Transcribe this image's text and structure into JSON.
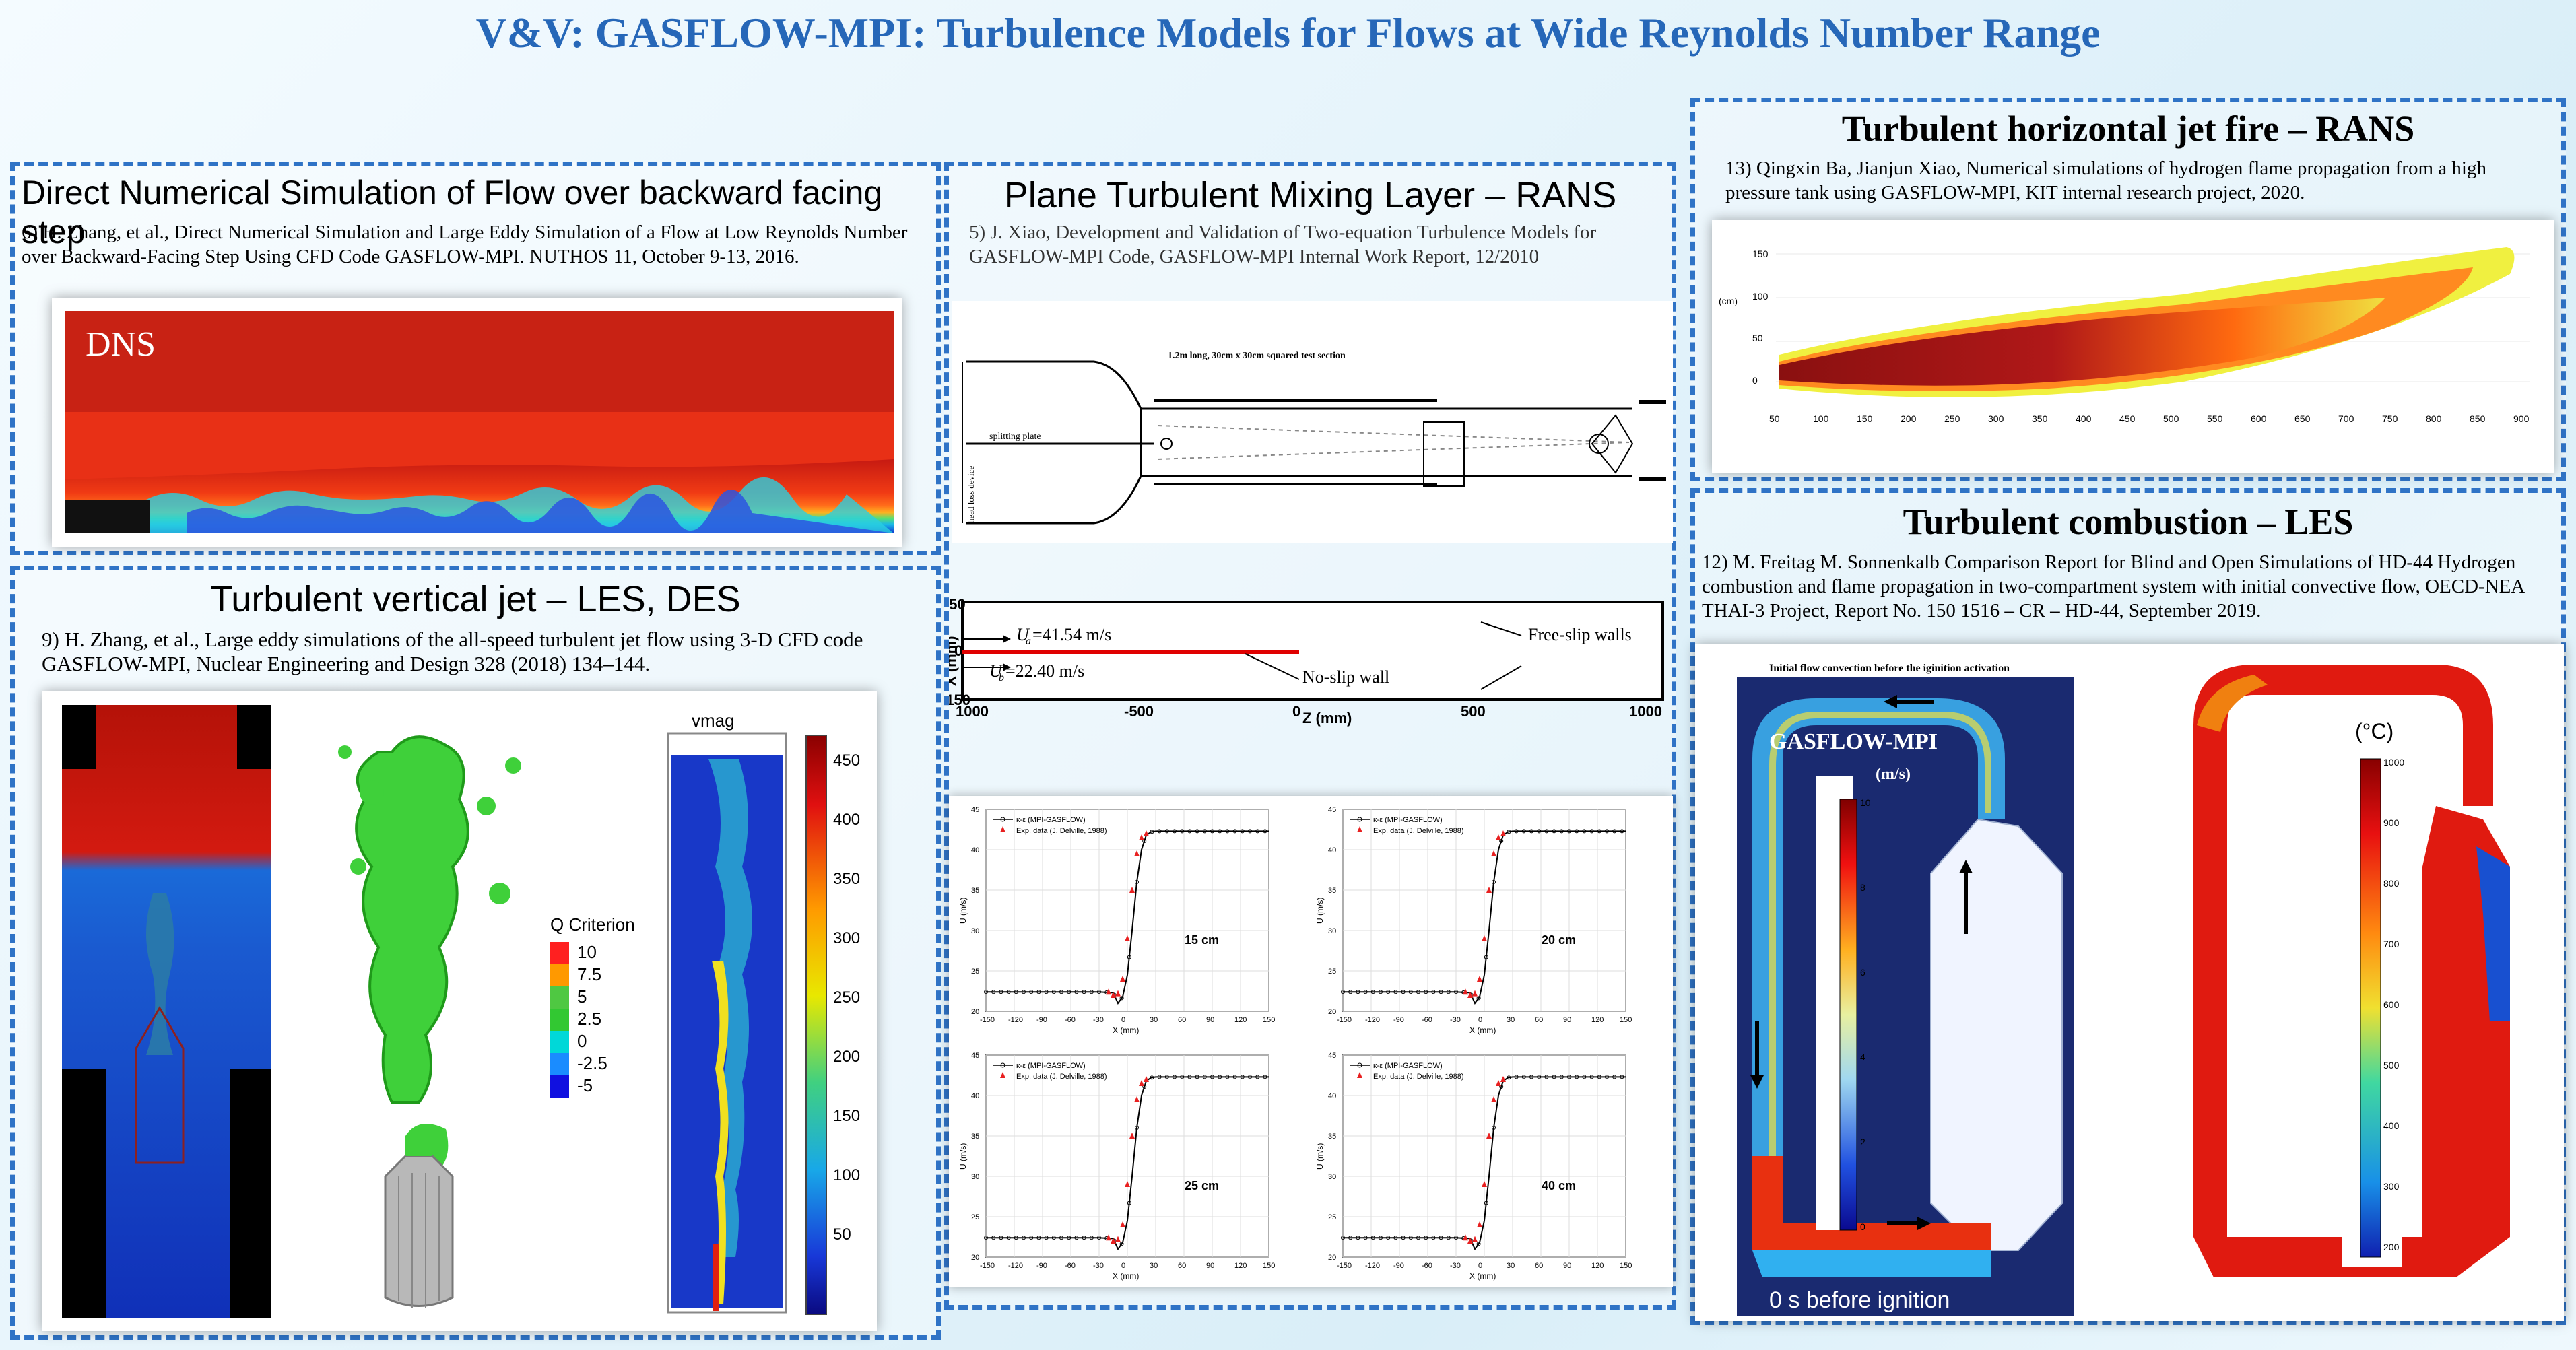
{
  "title": "V&V: GASFLOW-MPI: Turbulence Models for Flows at Wide Reynolds Number Range",
  "dns_panel": {
    "heading": "Direct Numerical Simulation of Flow over backward facing step",
    "ref": "6) H. Zhang, et al., Direct Numerical Simulation and Large Eddy Simulation of a Flow at Low Reynolds Number over Backward-Facing Step Using CFD Code GASFLOW-MPI. NUTHOS 11, October 9-13, 2016.",
    "figure_label": "DNS"
  },
  "jet_panel": {
    "heading": "Turbulent vertical jet – LES, DES",
    "ref": "9) H. Zhang, et al., Large eddy simulations of the all-speed turbulent jet flow using 3-D CFD code GASFLOW-MPI, Nuclear Engineering and Design 328 (2018) 134–144.",
    "q_title": "Q Criterion",
    "q_levels": [
      "10",
      "7.5",
      "5",
      "2.5",
      "0",
      "-2.5",
      "-5"
    ],
    "q_colors": [
      "#ff2020",
      "#ff9900",
      "#4fc842",
      "#32c832",
      "#00d8d8",
      "#1a8cff",
      "#1010e0"
    ],
    "vmag_title": "vmag",
    "vmag_ticks": [
      "450",
      "400",
      "350",
      "300",
      "250",
      "200",
      "150",
      "100",
      "50"
    ]
  },
  "mixing_panel": {
    "heading": "Plane Turbulent Mixing Layer – RANS",
    "ref": "5) J. Xiao, Development and Validation of Two-equation Turbulence Models for GASFLOW-MPI Code, GASFLOW-MPI Internal Work Report, 12/2010",
    "schematic": {
      "section": "1.2m long, 30cm x 30cm squared test section",
      "splitting": "splitting plate",
      "headloss": "head loss device"
    },
    "domain": {
      "ylabel": "X (mm)",
      "ua": "=41.54 m/s",
      "ub": "=22.40 m/s",
      "freeslip": "Free-slip walls",
      "noslip": "No-slip wall",
      "y_top": "150",
      "y_mid": "0",
      "y_bot": "-150",
      "x_ticks": [
        "1000",
        "-500",
        "0",
        "500",
        "1000"
      ],
      "xlabel": "Z (mm)"
    },
    "legend_model": "κ-ε (MPI-GASFLOW)",
    "legend_exp": "Exp. data (J. Delville, 1988)",
    "xlabel": "X (mm)",
    "ylabel": "U (m/s)"
  },
  "chart_data": [
    {
      "type": "line",
      "title": "15 cm",
      "xlim": [
        -150,
        150
      ],
      "ylim": [
        20,
        45
      ],
      "x_ticks": [
        "-150",
        "-120",
        "-90",
        "-60",
        "-30",
        "0",
        "30",
        "60",
        "90",
        "120",
        "150"
      ],
      "y_ticks": [
        "20",
        "25",
        "30",
        "35",
        "40",
        "45"
      ],
      "series": [
        {
          "name": "κ-ε (MPI-GASFLOW)",
          "x": [
            -150,
            -30,
            -15,
            -10,
            -5,
            0,
            5,
            10,
            15,
            20,
            25,
            30,
            150
          ],
          "y": [
            22.4,
            22.4,
            22.3,
            21.0,
            21.8,
            24.5,
            30.0,
            36.0,
            40.0,
            41.8,
            42.2,
            42.3,
            42.3
          ]
        },
        {
          "name": "Exp. data (J. Delville, 1988)",
          "x": [
            -20,
            -15,
            -10,
            -5,
            0,
            5,
            10,
            15,
            20
          ],
          "y": [
            22.4,
            22.0,
            22.2,
            24.0,
            29.0,
            35.0,
            39.5,
            41.5,
            42.0
          ]
        }
      ]
    },
    {
      "type": "line",
      "title": "20 cm",
      "xlim": [
        -150,
        150
      ],
      "ylim": [
        20,
        45
      ],
      "x_ticks": [
        "-150",
        "-120",
        "-90",
        "-60",
        "-30",
        "0",
        "30",
        "60",
        "90",
        "120",
        "150"
      ],
      "y_ticks": [
        "20",
        "25",
        "30",
        "35",
        "40",
        "45"
      ],
      "series": [
        {
          "name": "κ-ε (MPI-GASFLOW)",
          "x": [
            -150,
            -30,
            -15,
            -10,
            -5,
            0,
            5,
            10,
            15,
            20,
            25,
            30,
            150
          ],
          "y": [
            22.4,
            22.4,
            22.3,
            21.0,
            21.8,
            24.5,
            30.0,
            36.0,
            40.0,
            41.8,
            42.2,
            42.3,
            42.3
          ]
        },
        {
          "name": "Exp. data (J. Delville, 1988)",
          "x": [
            -20,
            -15,
            -10,
            -5,
            0,
            5,
            10,
            15,
            20
          ],
          "y": [
            22.4,
            22.0,
            22.2,
            24.0,
            29.0,
            35.0,
            39.5,
            41.5,
            42.0
          ]
        }
      ]
    },
    {
      "type": "line",
      "title": "25 cm",
      "xlim": [
        -150,
        150
      ],
      "ylim": [
        20,
        45
      ],
      "x_ticks": [
        "-150",
        "-120",
        "-90",
        "-60",
        "-30",
        "0",
        "30",
        "60",
        "90",
        "120",
        "150"
      ],
      "y_ticks": [
        "20",
        "25",
        "30",
        "35",
        "40",
        "45"
      ],
      "series": [
        {
          "name": "κ-ε (MPI-GASFLOW)",
          "x": [
            -150,
            -30,
            -15,
            -10,
            -5,
            0,
            5,
            10,
            15,
            20,
            25,
            30,
            150
          ],
          "y": [
            22.4,
            22.4,
            22.3,
            21.0,
            21.8,
            24.5,
            30.0,
            36.0,
            40.0,
            41.8,
            42.2,
            42.3,
            42.3
          ]
        },
        {
          "name": "Exp. data (J. Delville, 1988)",
          "x": [
            -20,
            -15,
            -10,
            -5,
            0,
            5,
            10,
            15,
            20
          ],
          "y": [
            22.4,
            22.0,
            22.2,
            24.0,
            29.0,
            35.0,
            39.5,
            41.5,
            42.0
          ]
        }
      ]
    },
    {
      "type": "line",
      "title": "40 cm",
      "xlim": [
        -150,
        150
      ],
      "ylim": [
        20,
        45
      ],
      "x_ticks": [
        "-150",
        "-120",
        "-90",
        "-60",
        "-30",
        "0",
        "30",
        "60",
        "90",
        "120",
        "150"
      ],
      "y_ticks": [
        "20",
        "25",
        "30",
        "35",
        "40",
        "45"
      ],
      "series": [
        {
          "name": "κ-ε (MPI-GASFLOW)",
          "x": [
            -150,
            -30,
            -15,
            -10,
            -5,
            0,
            5,
            10,
            15,
            20,
            25,
            30,
            150
          ],
          "y": [
            22.4,
            22.4,
            22.3,
            21.0,
            21.8,
            24.5,
            30.0,
            36.0,
            40.0,
            41.8,
            42.2,
            42.3,
            42.3
          ]
        },
        {
          "name": "Exp. data (J. Delville, 1988)",
          "x": [
            -20,
            -15,
            -10,
            -5,
            0,
            5,
            10,
            15,
            20
          ],
          "y": [
            22.4,
            22.0,
            22.2,
            24.0,
            29.0,
            35.0,
            39.5,
            41.5,
            42.0
          ]
        }
      ]
    }
  ],
  "fire_panel": {
    "heading": "Turbulent horizontal jet fire – RANS",
    "ref": "13) Qingxin Ba, Jianjun Xiao, Numerical simulations of hydrogen flame propagation from a high pressure tank using GASFLOW-MPI, KIT internal research project, 2020.",
    "ylabel": "(cm)",
    "y_ticks": [
      "150",
      "100",
      "50",
      "0"
    ],
    "x_ticks": [
      "50",
      "100",
      "150",
      "200",
      "250",
      "300",
      "350",
      "400",
      "450",
      "500",
      "550",
      "600",
      "650",
      "700",
      "750",
      "800",
      "850",
      "900"
    ]
  },
  "combustion_panel": {
    "heading": "Turbulent combustion – LES",
    "ref": "12) M. Freitag M. Sonnenkalb Comparison Report for Blind and Open Simulations of HD-44 Hydrogen combustion and flame propagation in two-compartment system with initial convective flow, OECD-NEA THAI-3 Project, Report No. 150 1516 – CR – HD-44, September 2019.",
    "fig_caption": "Initial flow convection before the iginition activation",
    "gasflow": "GASFLOW-MPI",
    "unit_ms": "(m/s)",
    "ms_ticks": [
      "10",
      "8",
      "6",
      "4",
      "2",
      "0"
    ],
    "time_label": "0 s before ignition",
    "unit_c": "(°C)",
    "c_ticks": [
      "1000",
      "900",
      "800",
      "700",
      "600",
      "500",
      "400",
      "300",
      "200"
    ]
  }
}
